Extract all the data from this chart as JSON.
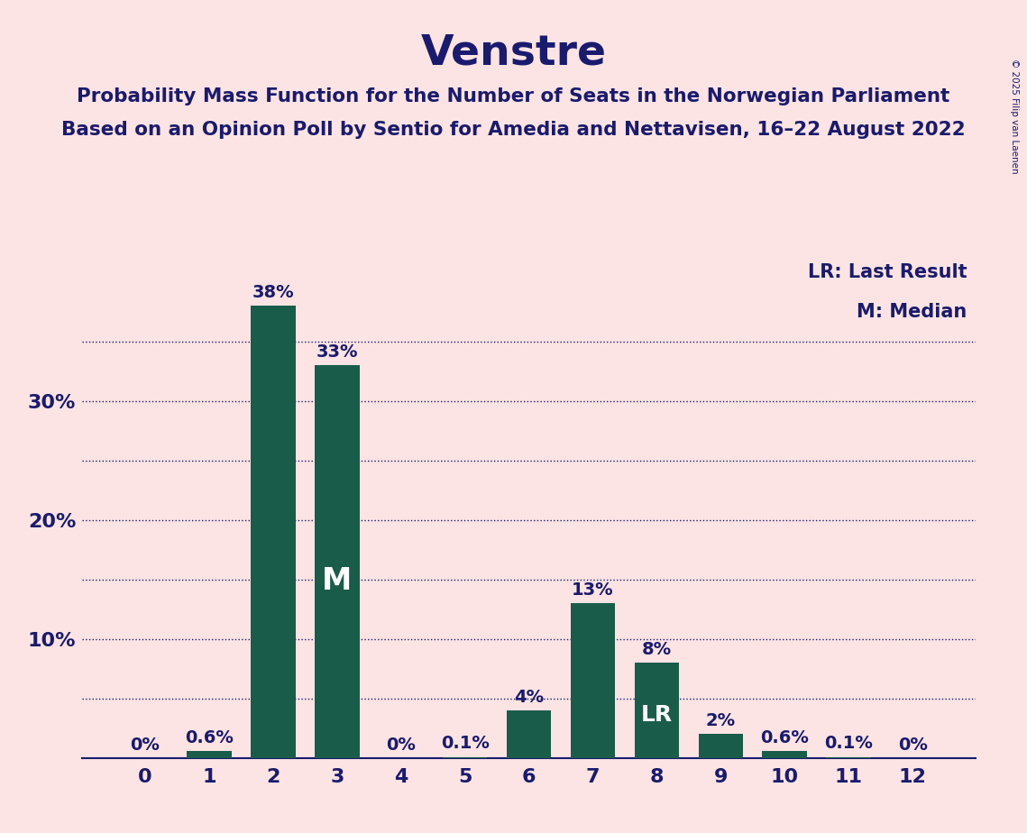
{
  "title": "Venstre",
  "subtitle1": "Probability Mass Function for the Number of Seats in the Norwegian Parliament",
  "subtitle2": "Based on an Opinion Poll by Sentio for Amedia and Nettavisen, 16–22 August 2022",
  "copyright": "© 2025 Filip van Laenen",
  "categories": [
    0,
    1,
    2,
    3,
    4,
    5,
    6,
    7,
    8,
    9,
    10,
    11,
    12
  ],
  "values": [
    0.0,
    0.6,
    38.0,
    33.0,
    0.0,
    0.1,
    4.0,
    13.0,
    8.0,
    2.0,
    0.6,
    0.1,
    0.0
  ],
  "labels": [
    "0%",
    "0.6%",
    "38%",
    "33%",
    "0%",
    "0.1%",
    "4%",
    "13%",
    "8%",
    "2%",
    "0.6%",
    "0.1%",
    "0%"
  ],
  "bar_color": "#1a5c4a",
  "background_color": "#fce4e4",
  "text_color": "#1a1a6e",
  "grid_color": "#1a1a6e",
  "ylim": [
    0,
    42
  ],
  "median_bar_index": 3,
  "lr_bar_index": 8,
  "legend_lr": "LR: Last Result",
  "legend_m": "M: Median",
  "title_fontsize": 34,
  "subtitle_fontsize": 15.5,
  "label_fontsize": 14,
  "tick_fontsize": 16,
  "bar_label_outside_color": "#1a1a6e",
  "bar_label_inside_color": "#ffffff",
  "ytick_positions": [
    10,
    20,
    30
  ],
  "ytick_labels": [
    "10%",
    "20%",
    "30%"
  ],
  "grid_lines": [
    5,
    10,
    15,
    20,
    25,
    30,
    35
  ]
}
